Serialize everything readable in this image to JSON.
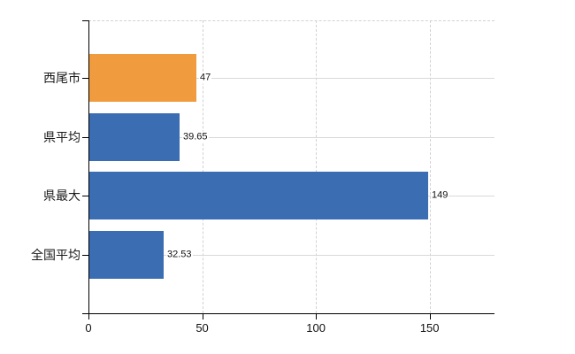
{
  "chart_data": {
    "type": "bar",
    "orientation": "horizontal",
    "title": "",
    "categories": [
      "西尾市",
      "県平均",
      "県最大",
      "全国平均"
    ],
    "values": [
      47,
      39.65,
      149,
      32.53
    ],
    "value_labels": [
      "47",
      "39.65",
      "149",
      "32.53"
    ],
    "bar_colors": [
      "#F09C3E",
      "#3B6DB3",
      "#3B6DB3",
      "#3B6DB3"
    ],
    "x_tick_values": [
      0,
      50,
      100,
      150
    ],
    "x_tick_labels": [
      "0",
      "50",
      "100",
      "150"
    ],
    "xlim": [
      0,
      178.5
    ],
    "legend": "none",
    "grid": {
      "horizontal": "solid light gray at each category center",
      "vertical": "dashed light gray at x ticks 50/100/150",
      "plot_top_border": "dashed light gray"
    }
  },
  "colors": {
    "bar_blue": "#3B6DB3",
    "bar_orange": "#F09C3E",
    "gridline": "#D9D9D9",
    "axis": "#000000",
    "text": "#111111",
    "background": "#FFFFFF"
  }
}
